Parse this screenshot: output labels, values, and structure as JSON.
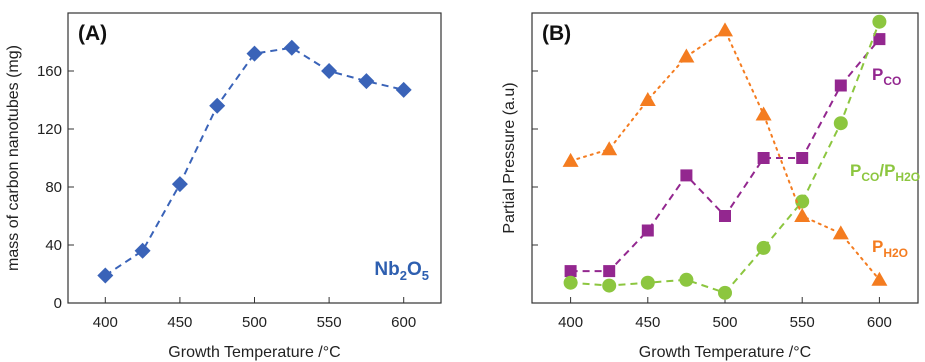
{
  "chart_data": [
    {
      "type": "scatter",
      "panel_label": "(A)",
      "xlabel": "Growth Temperature /°C",
      "ylabel": "mass of carbon nanotubes (mg)",
      "xlim": [
        375,
        625
      ],
      "ylim": [
        0,
        200
      ],
      "xticks": [
        400,
        450,
        500,
        550,
        600
      ],
      "yticks": [
        0,
        40,
        80,
        120,
        160
      ],
      "annotation": {
        "main": "Nb",
        "sub": "2",
        "main2": "O",
        "sub2": "5",
        "color": "#2e5fb0"
      },
      "series": [
        {
          "marker": "diamond",
          "line": "dashed",
          "color": "#3a63b8",
          "x": [
            400,
            425,
            450,
            475,
            500,
            525,
            550,
            575,
            600
          ],
          "y": [
            19,
            36,
            82,
            136,
            172,
            176,
            160,
            153,
            147
          ]
        }
      ]
    },
    {
      "type": "scatter",
      "panel_label": "(B)",
      "xlabel": "Growth Temperature /°C",
      "ylabel": "Partial Pressure (a.u)",
      "xlim": [
        375,
        625
      ],
      "ylim": [
        0,
        10
      ],
      "xticks": [
        400,
        450,
        500,
        550,
        600
      ],
      "yticks": [
        0,
        2,
        4,
        6,
        8,
        10
      ],
      "show_ytick_labels": false,
      "series": [
        {
          "label_main": "P",
          "label_sub": "CO",
          "label_sub2": "",
          "marker": "square",
          "line": "dashed",
          "color": "#93278f",
          "x": [
            400,
            425,
            450,
            475,
            500,
            525,
            550,
            575,
            600
          ],
          "y": [
            1.1,
            1.1,
            2.5,
            4.4,
            3.0,
            5.0,
            5.0,
            7.5,
            9.1
          ]
        },
        {
          "label_main": "P",
          "label_sub": "CO",
          "label_sub2": "H2O",
          "marker": "circle",
          "line": "dashed",
          "color": "#8cc63f",
          "x": [
            400,
            425,
            450,
            475,
            500,
            525,
            550,
            575,
            600
          ],
          "y": [
            0.7,
            0.6,
            0.7,
            0.8,
            0.35,
            1.9,
            3.5,
            6.2,
            9.7
          ]
        },
        {
          "label_main": "P",
          "label_sub": "H2O",
          "label_sub2": "",
          "marker": "triangle",
          "line": "dotted",
          "color": "#f47c20",
          "x": [
            400,
            425,
            450,
            475,
            500,
            525,
            550,
            575,
            600
          ],
          "y": [
            4.9,
            5.3,
            7.0,
            8.5,
            9.4,
            6.5,
            3.0,
            2.4,
            0.8
          ]
        }
      ]
    }
  ]
}
